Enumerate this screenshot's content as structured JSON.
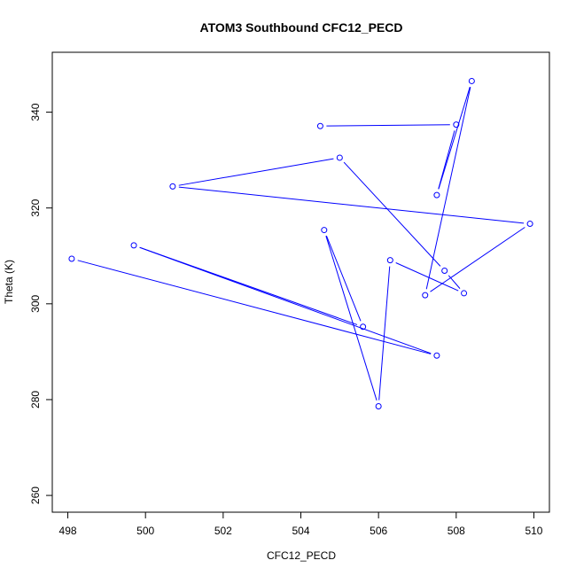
{
  "chart_data": {
    "type": "line",
    "title": "ATOM3 Southbound CFC12_PECD",
    "xlabel": "CFC12_PECD",
    "ylabel": "Theta (K)",
    "xlim": [
      497.6,
      510.4
    ],
    "ylim": [
      256.5,
      352.5
    ],
    "x_ticks": [
      498,
      500,
      502,
      504,
      506,
      508,
      510
    ],
    "y_ticks": [
      260,
      280,
      300,
      320,
      340
    ],
    "grid": false,
    "series": [
      {
        "color": "#0000ff",
        "marker": "open-circle",
        "points": [
          {
            "x": 504.5,
            "y": 337.1
          },
          {
            "x": 508.0,
            "y": 337.4
          },
          {
            "x": 507.5,
            "y": 322.7
          },
          {
            "x": 508.4,
            "y": 346.5
          },
          {
            "x": 507.2,
            "y": 301.8
          },
          {
            "x": 509.9,
            "y": 316.7
          },
          {
            "x": 500.7,
            "y": 324.5
          },
          {
            "x": 505.0,
            "y": 330.5
          },
          {
            "x": 507.7,
            "y": 306.9
          },
          {
            "x": 508.2,
            "y": 302.2
          },
          {
            "x": 506.3,
            "y": 309.1
          },
          {
            "x": 506.0,
            "y": 278.6
          },
          {
            "x": 504.6,
            "y": 315.4
          },
          {
            "x": 505.6,
            "y": 295.2
          },
          {
            "x": 499.7,
            "y": 312.2
          },
          {
            "x": 507.5,
            "y": 289.2
          },
          {
            "x": 498.1,
            "y": 309.4
          }
        ]
      }
    ]
  }
}
